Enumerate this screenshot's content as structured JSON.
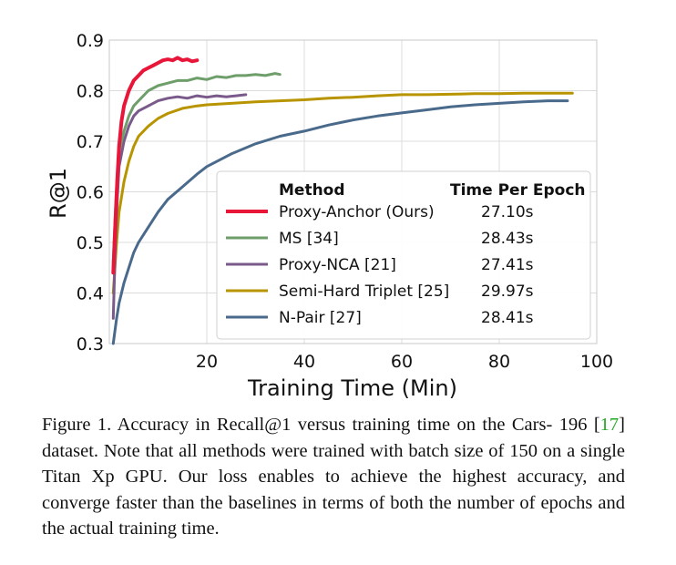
{
  "chart_data": {
    "type": "line",
    "title": "",
    "xlabel": "Training Time (Min)",
    "ylabel": "R@1",
    "xlim": [
      0,
      100
    ],
    "ylim": [
      0.3,
      0.9
    ],
    "xticks": [
      20,
      40,
      60,
      80,
      100
    ],
    "yticks": [
      0.3,
      0.4,
      0.5,
      0.6,
      0.7,
      0.8,
      0.9
    ],
    "grid": true,
    "legend_position": "lower-right",
    "legend_header_method": "Method",
    "legend_header_time": "Time Per Epoch",
    "series": [
      {
        "name": "Proxy-Anchor (Ours)",
        "time_per_epoch": "27.10s",
        "color": "#e8173a",
        "x": [
          0.8,
          1.2,
          1.6,
          2.0,
          2.5,
          3.0,
          4.0,
          5.0,
          6.0,
          7.0,
          8.0,
          9.0,
          10.0,
          11.0,
          12.0,
          13.0,
          14.0,
          15.0,
          16.0,
          17.0,
          18.0
        ],
        "y": [
          0.44,
          0.53,
          0.62,
          0.69,
          0.74,
          0.77,
          0.8,
          0.82,
          0.83,
          0.84,
          0.845,
          0.85,
          0.855,
          0.86,
          0.862,
          0.86,
          0.865,
          0.86,
          0.862,
          0.858,
          0.86
        ]
      },
      {
        "name": "MS [34]",
        "time_per_epoch": "28.43s",
        "color": "#6e9e6a",
        "x": [
          0.8,
          1.2,
          1.6,
          2.0,
          3.0,
          4.0,
          5.0,
          6.0,
          8.0,
          10.0,
          12.0,
          14.0,
          16.0,
          18.0,
          20.0,
          22.0,
          24.0,
          26.0,
          28.0,
          30.0,
          32.0,
          34.0,
          35.0
        ],
        "y": [
          0.46,
          0.55,
          0.63,
          0.68,
          0.72,
          0.75,
          0.77,
          0.78,
          0.8,
          0.81,
          0.815,
          0.82,
          0.82,
          0.825,
          0.822,
          0.828,
          0.826,
          0.83,
          0.83,
          0.832,
          0.83,
          0.834,
          0.832
        ]
      },
      {
        "name": "Proxy-NCA [21]",
        "time_per_epoch": "27.41s",
        "color": "#7a5a8a",
        "x": [
          0.8,
          1.2,
          1.6,
          2.0,
          3.0,
          4.0,
          5.0,
          6.0,
          8.0,
          10.0,
          12.0,
          14.0,
          16.0,
          18.0,
          20.0,
          22.0,
          24.0,
          26.0,
          28.0
        ],
        "y": [
          0.35,
          0.48,
          0.58,
          0.65,
          0.7,
          0.73,
          0.75,
          0.76,
          0.77,
          0.78,
          0.785,
          0.788,
          0.785,
          0.79,
          0.787,
          0.79,
          0.788,
          0.79,
          0.792
        ]
      },
      {
        "name": "Semi-Hard Triplet [25]",
        "time_per_epoch": "29.97s",
        "color": "#b89500",
        "x": [
          0.8,
          1.5,
          2.0,
          3.0,
          4.0,
          5.0,
          6.0,
          8.0,
          10.0,
          12.0,
          15.0,
          18.0,
          20.0,
          25.0,
          30.0,
          35.0,
          40.0,
          45.0,
          50.0,
          55.0,
          60.0,
          65.0,
          70.0,
          75.0,
          80.0,
          85.0,
          90.0,
          95.0
        ],
        "y": [
          0.4,
          0.5,
          0.56,
          0.62,
          0.66,
          0.69,
          0.71,
          0.73,
          0.745,
          0.755,
          0.765,
          0.77,
          0.772,
          0.775,
          0.778,
          0.78,
          0.782,
          0.785,
          0.787,
          0.79,
          0.792,
          0.792,
          0.793,
          0.794,
          0.794,
          0.795,
          0.795,
          0.795
        ]
      },
      {
        "name": "N-Pair [27]",
        "time_per_epoch": "28.41s",
        "color": "#4a6a8c",
        "x": [
          0.8,
          1.5,
          2.0,
          3.0,
          4.0,
          5.0,
          6.0,
          8.0,
          10.0,
          12.0,
          15.0,
          18.0,
          20.0,
          25.0,
          30.0,
          35.0,
          40.0,
          45.0,
          50.0,
          55.0,
          60.0,
          65.0,
          70.0,
          75.0,
          80.0,
          85.0,
          90.0,
          94.0
        ],
        "y": [
          0.3,
          0.35,
          0.38,
          0.42,
          0.45,
          0.48,
          0.5,
          0.53,
          0.56,
          0.585,
          0.61,
          0.635,
          0.65,
          0.675,
          0.695,
          0.71,
          0.72,
          0.732,
          0.742,
          0.75,
          0.756,
          0.762,
          0.768,
          0.772,
          0.775,
          0.778,
          0.78,
          0.78
        ]
      }
    ]
  },
  "caption": {
    "line1_pre": "Figure 1.  Accuracy in Recall@1 versus training time on the Cars-",
    "line2_pre": "196 [",
    "line2_ref": "17",
    "line2_post": "] dataset.  Note that all methods were trained with batch",
    "rest": "size of 150 on a single Titan Xp GPU. Our loss enables to achieve the highest accuracy, and converge faster than the baselines in terms of both the number of epochs and the actual training time."
  }
}
